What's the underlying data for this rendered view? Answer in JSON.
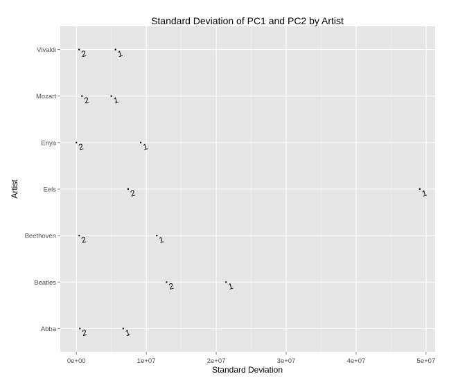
{
  "chart_data": {
    "type": "scatter",
    "title": "Standard Deviation of PC1 and PC2 by Artist",
    "xlabel": "Standard Deviation",
    "ylabel": "Artist",
    "xlim": [
      -2300000,
      51300000
    ],
    "x_ticks": [
      0,
      10000000,
      20000000,
      30000000,
      40000000,
      50000000
    ],
    "x_tick_labels": [
      "0e+00",
      "1e+07",
      "2e+07",
      "3e+07",
      "4e+07",
      "5e+07"
    ],
    "categories": [
      "Abba",
      "Beatles",
      "Beethoven",
      "Eels",
      "Enya",
      "Mozart",
      "Vivaldi"
    ],
    "grid": true,
    "series": [
      {
        "name": "1",
        "marker_label": "1",
        "values": [
          6700000,
          21400000,
          11500000,
          49100000,
          9200000,
          5000000,
          5600000
        ]
      },
      {
        "name": "2",
        "marker_label": "2",
        "values": [
          500000,
          12900000,
          400000,
          7400000,
          0,
          800000,
          400000
        ]
      }
    ],
    "colors": {
      "panel": "#e5e5e5",
      "grid_major": "#ffffff",
      "grid_minor": "#f2f2f2",
      "point": "#000000",
      "tick_text": "#4d4d4d"
    }
  }
}
